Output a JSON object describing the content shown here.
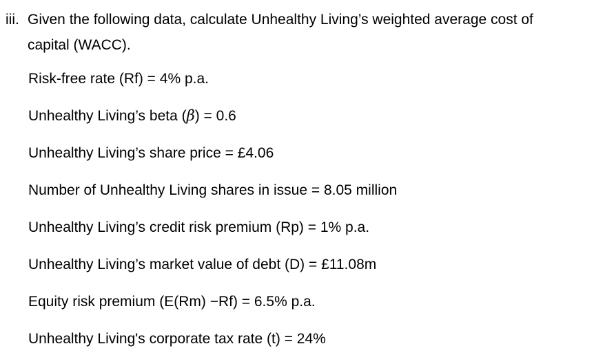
{
  "page": {
    "background_color": "#ffffff",
    "text_color": "#000000"
  },
  "document": {
    "item_marker": "iii.",
    "question_lines": [
      "Given the following data, calculate Unhealthy Living’s weighted average cost of",
      "capital (WACC)."
    ],
    "data_lines": [
      {
        "pre": "Risk-free rate (Rf) = 4% p.a.",
        "sym": "",
        "post": ""
      },
      {
        "pre": "Unhealthy Living’s beta (",
        "sym": "β",
        "post": ") = 0.6"
      },
      {
        "pre": "Unhealthy Living’s share price = £4.06",
        "sym": "",
        "post": ""
      },
      {
        "pre": "Number of Unhealthy Living shares in issue = 8.05 million",
        "sym": "",
        "post": ""
      },
      {
        "pre": "Unhealthy Living’s credit risk premium (Rp) = 1% p.a.",
        "sym": "",
        "post": ""
      },
      {
        "pre": "Unhealthy Living’s market value of debt (D) = £11.08m",
        "sym": "",
        "post": ""
      },
      {
        "pre": "Equity risk premium (E(Rm) −Rf) = 6.5% p.a.",
        "sym": "",
        "post": ""
      },
      {
        "pre": "Unhealthy Living's corporate tax rate (t) = 24%",
        "sym": "",
        "post": ""
      }
    ]
  }
}
